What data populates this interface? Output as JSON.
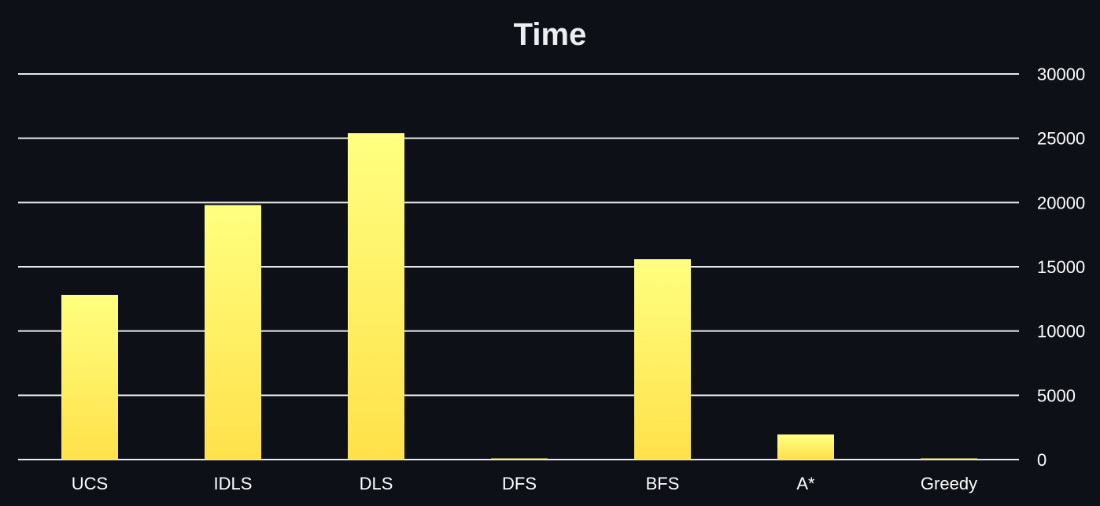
{
  "chart_data": {
    "type": "bar",
    "title": "Time",
    "categories": [
      "UCS",
      "IDLS",
      "DLS",
      "DFS",
      "BFS",
      "A*",
      "Greedy"
    ],
    "values": [
      12800,
      19800,
      25400,
      0,
      15600,
      1950,
      0
    ],
    "ylim": [
      0,
      30000
    ],
    "yticks": [
      0,
      5000,
      10000,
      15000,
      20000,
      25000,
      30000
    ],
    "xlabel": "",
    "ylabel": "",
    "y_axis_side": "right",
    "grid": true,
    "legend": "none",
    "colors": {
      "background": "#0d1017",
      "bar_top": "#ffff80",
      "bar_bottom": "#ffe14a",
      "grid": "#e8e8e8",
      "text": "#ffffff"
    }
  }
}
